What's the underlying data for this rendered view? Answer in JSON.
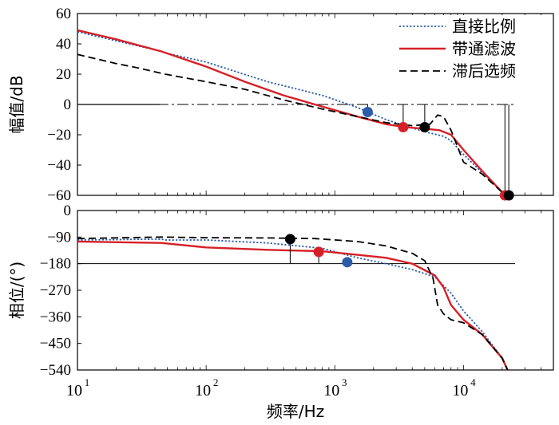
{
  "chart_data": [
    {
      "type": "line",
      "ylabel": "幅值/dB",
      "xscale": "log",
      "xlim": [
        10,
        50000
      ],
      "ylim": [
        -60,
        60
      ],
      "yticks": [
        60,
        40,
        20,
        0,
        -20,
        -40,
        -60
      ],
      "grid": false,
      "legend_position": "top-right",
      "legend": [
        "直接比例",
        "带通滤波",
        "滞后选频"
      ],
      "series": [
        {
          "name": "直接比例",
          "color": "#2a5caa",
          "dash": "dotted",
          "points": [
            [
              10,
              48
            ],
            [
              20,
              42
            ],
            [
              45,
              35
            ],
            [
              48,
              34
            ],
            [
              100,
              28
            ],
            [
              300,
              15
            ],
            [
              800,
              6
            ],
            [
              1500,
              -2
            ],
            [
              2500,
              -10
            ],
            [
              3500,
              -14
            ],
            [
              5000,
              -18
            ],
            [
              7000,
              -21
            ],
            [
              8000,
              -24
            ],
            [
              10000,
              -33
            ],
            [
              14000,
              -45
            ],
            [
              20000,
              -58
            ],
            [
              22000,
              -61
            ]
          ]
        },
        {
          "name": "带通滤波",
          "color": "#d62027",
          "dash": "solid",
          "points": [
            [
              10,
              49
            ],
            [
              20,
              43
            ],
            [
              45,
              35
            ],
            [
              100,
              25
            ],
            [
              200,
              15
            ],
            [
              400,
              6
            ],
            [
              700,
              0
            ],
            [
              1500,
              -8
            ],
            [
              2500,
              -13
            ],
            [
              3500,
              -15
            ],
            [
              5000,
              -16
            ],
            [
              6500,
              -17
            ],
            [
              8000,
              -20
            ],
            [
              10000,
              -30
            ],
            [
              14000,
              -44
            ],
            [
              20000,
              -58
            ],
            [
              22000,
              -61
            ]
          ]
        },
        {
          "name": "滞后选频",
          "color": "#000000",
          "dash": "dashed",
          "points": [
            [
              10,
              33
            ],
            [
              20,
              27
            ],
            [
              30,
              24
            ],
            [
              48,
              20
            ],
            [
              100,
              15
            ],
            [
              200,
              10
            ],
            [
              400,
              3
            ],
            [
              800,
              -3
            ],
            [
              1500,
              -8
            ],
            [
              2500,
              -12
            ],
            [
              4000,
              -14
            ],
            [
              5500,
              -13
            ],
            [
              6300,
              -7
            ],
            [
              7000,
              -8
            ],
            [
              8000,
              -17
            ],
            [
              10000,
              -38
            ],
            [
              14000,
              -46
            ],
            [
              20000,
              -58
            ],
            [
              22000,
              -61
            ]
          ]
        }
      ],
      "markers": [
        {
          "x": 1800,
          "y": -5,
          "color": "#2a5caa"
        },
        {
          "x": 3400,
          "y": -15,
          "color": "#d62027"
        },
        {
          "x": 5000,
          "y": -15,
          "color": "#000000"
        },
        {
          "x": 21000,
          "y": -60,
          "color": "#d62027"
        },
        {
          "x": 22500,
          "y": -60,
          "color": "#000000"
        }
      ],
      "reference_y": 0
    },
    {
      "type": "line",
      "ylabel": "相位/(°)",
      "xlabel": "频率/Hz",
      "xscale": "log",
      "xlim": [
        10,
        50000
      ],
      "ylim": [
        -540,
        0
      ],
      "yticks": [
        0,
        -90,
        -180,
        -270,
        -360,
        -450,
        -540
      ],
      "xticks": [
        10,
        100,
        1000,
        10000
      ],
      "xtick_labels": [
        [
          "10",
          "1"
        ],
        [
          "10",
          "2"
        ],
        [
          "10",
          "3"
        ],
        [
          "10",
          "4"
        ]
      ],
      "grid": false,
      "series": [
        {
          "name": "直接比例",
          "color": "#2a5caa",
          "dash": "dotted",
          "points": [
            [
              10,
              -100
            ],
            [
              45,
              -97
            ],
            [
              48,
              -100
            ],
            [
              100,
              -100
            ],
            [
              300,
              -110
            ],
            [
              800,
              -128
            ],
            [
              1500,
              -160
            ],
            [
              2500,
              -180
            ],
            [
              4000,
              -200
            ],
            [
              6000,
              -225
            ],
            [
              8000,
              -280
            ],
            [
              10000,
              -340
            ],
            [
              14000,
              -410
            ],
            [
              20000,
              -500
            ],
            [
              22000,
              -540
            ]
          ]
        },
        {
          "name": "带通滤波",
          "color": "#d62027",
          "dash": "solid",
          "points": [
            [
              10,
              -105
            ],
            [
              45,
              -110
            ],
            [
              100,
              -125
            ],
            [
              300,
              -133
            ],
            [
              800,
              -138
            ],
            [
              1500,
              -150
            ],
            [
              2500,
              -160
            ],
            [
              4000,
              -180
            ],
            [
              6000,
              -220
            ],
            [
              7000,
              -260
            ],
            [
              8000,
              -320
            ],
            [
              10000,
              -370
            ],
            [
              14000,
              -420
            ],
            [
              20000,
              -500
            ],
            [
              22000,
              -540
            ]
          ]
        },
        {
          "name": "滞后选频",
          "color": "#000000",
          "dash": "dashed",
          "points": [
            [
              10,
              -95
            ],
            [
              45,
              -90
            ],
            [
              100,
              -92
            ],
            [
              300,
              -93
            ],
            [
              700,
              -95
            ],
            [
              1500,
              -105
            ],
            [
              2500,
              -120
            ],
            [
              4000,
              -145
            ],
            [
              5000,
              -170
            ],
            [
              5800,
              -230
            ],
            [
              6300,
              -320
            ],
            [
              7000,
              -350
            ],
            [
              8000,
              -370
            ],
            [
              10000,
              -380
            ],
            [
              14000,
              -420
            ],
            [
              20000,
              -500
            ],
            [
              22000,
              -540
            ]
          ]
        }
      ],
      "markers": [
        {
          "x": 450,
          "y": -97,
          "color": "#000000"
        },
        {
          "x": 750,
          "y": -140,
          "color": "#d62027"
        },
        {
          "x": 1250,
          "y": -175,
          "color": "#2a5caa"
        }
      ],
      "reference_y": -180
    }
  ]
}
